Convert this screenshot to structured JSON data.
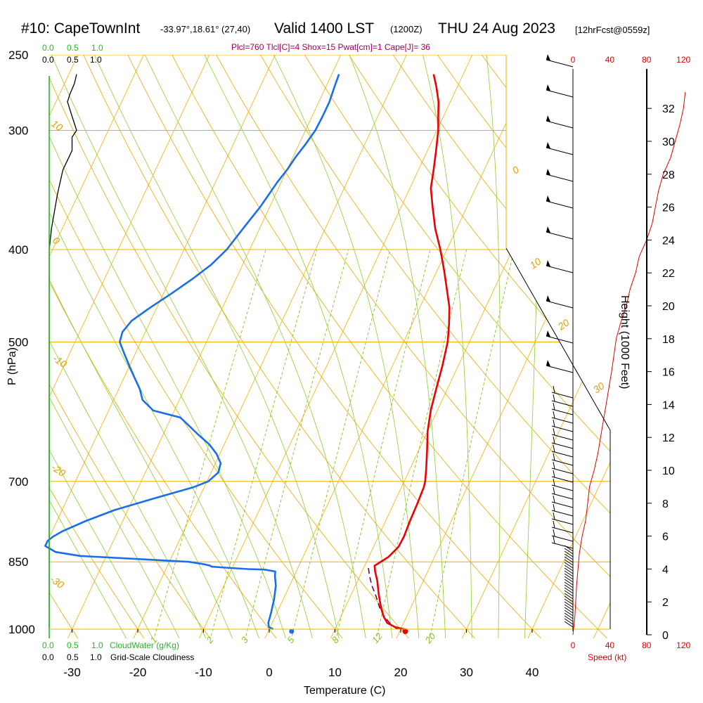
{
  "title": {
    "station": "#10: CapeTownInt",
    "coords": "-33.97°,18.61° (27,40)",
    "valid": "Valid 1400 LST",
    "utc": "(1200Z)",
    "date": "THU 24 Aug 2023",
    "forecast": "[12hrFcst@0559z]"
  },
  "indices": "Plcl=760 Tlcl[C]=4 Shox=15 Pwat[cm]=1 Cape[J]= 36",
  "scales": {
    "cloudwater_ticks": [
      "0.0",
      "0.5",
      "1.0"
    ],
    "cloudiness_ticks": [
      "0.0",
      "0.5",
      "1.0"
    ],
    "cloudwater_label": "CloudWater (g/Kg)",
    "cloudiness_label": "Grid-Scale Cloudiness"
  },
  "colors": {
    "temperature": "#ee0000",
    "dewpoint": "#1a6fe8",
    "parcel": "#7a0044",
    "isotherm_isobar": "#f0b000",
    "dry_adiabat": "#e8a800",
    "moist_adiabat": "#8fcc33",
    "mixing_ratio": "#88c020",
    "cloud": "#22bb22",
    "speed": "#e00000"
  },
  "chart_data": {
    "type": "line",
    "chart_kind": "Skew-T log-P sounding",
    "xlabel": "Temperature (C)",
    "ylabel": "P (hPa)",
    "y2label": "Height (1000 Feet)",
    "speed_label": "Speed (kt)",
    "x_ticks": [
      -30,
      -20,
      -10,
      0,
      10,
      20,
      30,
      40
    ],
    "xlim": [
      -34,
      47
    ],
    "pressure_ticks": [
      250,
      300,
      400,
      500,
      700,
      850,
      1000
    ],
    "ylim_hpa": [
      1020,
      250
    ],
    "y_scale": "log",
    "height_ticks_kft": [
      0,
      2,
      4,
      6,
      8,
      10,
      12,
      14,
      16,
      18,
      20,
      22,
      24,
      26,
      28,
      30,
      32
    ],
    "speed_ticks_kt": [
      0,
      40,
      80,
      120
    ],
    "dry_adiabat_labels": [
      -10,
      0,
      10,
      20,
      30
    ],
    "dry_adiabat_left_labels": [
      10,
      0,
      -10,
      -20,
      -30
    ],
    "mixing_ratio_labels": [
      1,
      2,
      3,
      5,
      8,
      12,
      20
    ],
    "series": [
      {
        "name": "Temperature",
        "points": [
          [
            1000,
            20.5
          ],
          [
            995,
            19.0
          ],
          [
            985,
            17.5
          ],
          [
            970,
            16.5
          ],
          [
            950,
            15.5
          ],
          [
            920,
            14.2
          ],
          [
            890,
            13.0
          ],
          [
            870,
            12.0
          ],
          [
            858,
            11.5
          ],
          [
            852,
            12.0
          ],
          [
            840,
            13.0
          ],
          [
            820,
            13.8
          ],
          [
            800,
            13.9
          ],
          [
            770,
            13.7
          ],
          [
            740,
            13.6
          ],
          [
            710,
            13.4
          ],
          [
            700,
            13.2
          ],
          [
            680,
            12.5
          ],
          [
            650,
            11.3
          ],
          [
            620,
            10.0
          ],
          [
            590,
            9.0
          ],
          [
            560,
            8.3
          ],
          [
            530,
            7.6
          ],
          [
            500,
            6.7
          ],
          [
            480,
            5.7
          ],
          [
            460,
            4.5
          ],
          [
            440,
            2.8
          ],
          [
            420,
            1.0
          ],
          [
            400,
            -1.0
          ],
          [
            380,
            -3.3
          ],
          [
            360,
            -5.3
          ],
          [
            345,
            -6.8
          ],
          [
            330,
            -7.7
          ],
          [
            315,
            -8.7
          ],
          [
            300,
            -9.8
          ],
          [
            290,
            -10.8
          ],
          [
            280,
            -11.8
          ],
          [
            270,
            -13.2
          ],
          [
            262,
            -14.5
          ]
        ]
      },
      {
        "name": "Dewpoint",
        "points": [
          [
            1000,
            0.6
          ],
          [
            995,
            -0.2
          ],
          [
            985,
            -0.6
          ],
          [
            960,
            -0.9
          ],
          [
            930,
            -1.4
          ],
          [
            900,
            -2.1
          ],
          [
            880,
            -2.9
          ],
          [
            870,
            -3.2
          ],
          [
            866,
            -5.0
          ],
          [
            865,
            -7.5
          ],
          [
            862,
            -11.0
          ],
          [
            860,
            -13.2
          ],
          [
            858,
            -13.5
          ],
          [
            855,
            -14.5
          ],
          [
            850,
            -17.0
          ],
          [
            845,
            -24.0
          ],
          [
            838,
            -34.0
          ],
          [
            830,
            -38.0
          ],
          [
            818,
            -40.0
          ],
          [
            808,
            -40.0
          ],
          [
            800,
            -39.5
          ],
          [
            790,
            -38.5
          ],
          [
            770,
            -35.6
          ],
          [
            750,
            -32.0
          ],
          [
            730,
            -27.0
          ],
          [
            710,
            -21.7
          ],
          [
            700,
            -19.8
          ],
          [
            685,
            -18.9
          ],
          [
            670,
            -19.2
          ],
          [
            655,
            -20.5
          ],
          [
            640,
            -22.3
          ],
          [
            625,
            -24.7
          ],
          [
            610,
            -27.0
          ],
          [
            600,
            -28.6
          ],
          [
            590,
            -33.2
          ],
          [
            575,
            -35.6
          ],
          [
            560,
            -36.8
          ],
          [
            545,
            -38.4
          ],
          [
            530,
            -40.0
          ],
          [
            515,
            -41.6
          ],
          [
            500,
            -43.2
          ],
          [
            488,
            -43.5
          ],
          [
            475,
            -42.9
          ],
          [
            460,
            -41.0
          ],
          [
            445,
            -38.8
          ],
          [
            430,
            -36.7
          ],
          [
            415,
            -34.8
          ],
          [
            400,
            -33.5
          ],
          [
            380,
            -32.5
          ],
          [
            360,
            -31.4
          ],
          [
            340,
            -30.6
          ],
          [
            330,
            -30.0
          ],
          [
            320,
            -29.6
          ],
          [
            310,
            -29.0
          ],
          [
            300,
            -28.5
          ],
          [
            290,
            -28.4
          ],
          [
            280,
            -28.4
          ],
          [
            270,
            -28.7
          ],
          [
            262,
            -28.9
          ]
        ]
      },
      {
        "name": "Parcel",
        "points": [
          [
            1000,
            19.5
          ],
          [
            990,
            18.3
          ],
          [
            970,
            16.6
          ],
          [
            950,
            15.3
          ],
          [
            920,
            13.7
          ],
          [
            900,
            12.5
          ],
          [
            880,
            11.5
          ],
          [
            860,
            10.6
          ]
        ]
      }
    ],
    "surface_temperature_c": 20.7,
    "surface_dewpoint_c": 3.4,
    "wind_speed_profile_kt": [
      [
        0,
        0
      ],
      [
        1,
        2
      ],
      [
        3,
        4
      ],
      [
        5,
        7
      ],
      [
        6,
        10
      ],
      [
        7,
        14
      ],
      [
        9,
        18
      ],
      [
        10,
        23
      ],
      [
        11,
        27
      ],
      [
        12,
        30
      ],
      [
        13,
        33
      ],
      [
        14,
        36
      ],
      [
        15,
        39
      ],
      [
        16,
        42
      ],
      [
        18,
        47
      ],
      [
        19,
        52
      ],
      [
        20,
        58
      ],
      [
        21,
        62
      ],
      [
        22,
        68
      ],
      [
        23,
        72
      ],
      [
        24,
        80
      ],
      [
        25,
        86
      ],
      [
        27,
        93
      ],
      [
        28,
        98
      ],
      [
        29,
        106
      ],
      [
        30,
        111
      ],
      [
        31,
        116
      ],
      [
        32,
        120
      ],
      [
        33,
        122
      ]
    ],
    "cloud_water_gkg": 0.0,
    "grid_scale_cloudiness": [
      [
        1000,
        0.0
      ],
      [
        900,
        0.0
      ],
      [
        800,
        0.0
      ],
      [
        700,
        0.0
      ],
      [
        600,
        0.0
      ],
      [
        500,
        0.0
      ],
      [
        400,
        0.0
      ],
      [
        380,
        0.05
      ],
      [
        350,
        0.18
      ],
      [
        330,
        0.3
      ],
      [
        315,
        0.5
      ],
      [
        305,
        0.5
      ],
      [
        300,
        0.6
      ],
      [
        290,
        0.5
      ],
      [
        280,
        0.4
      ],
      [
        275,
        0.45
      ],
      [
        268,
        0.55
      ],
      [
        262,
        0.6
      ]
    ]
  }
}
